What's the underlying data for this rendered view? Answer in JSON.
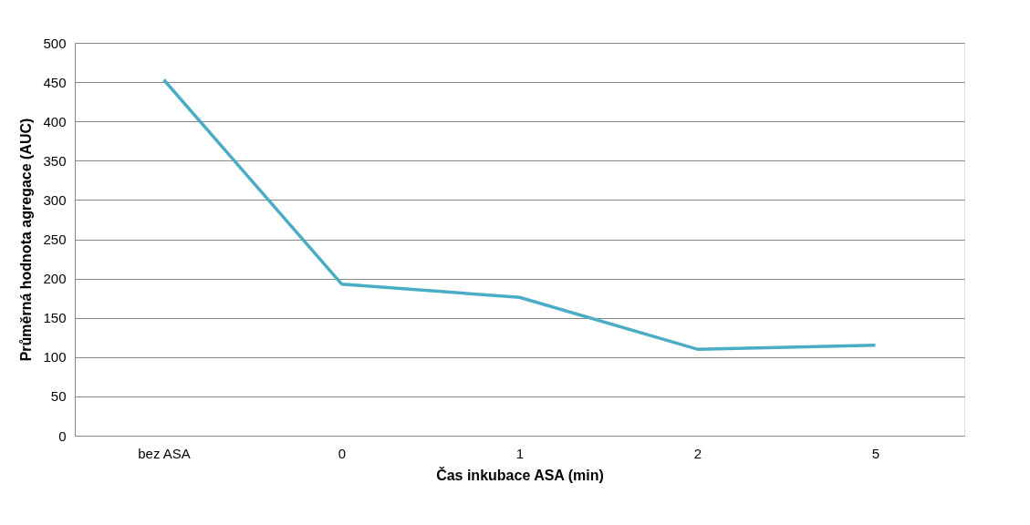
{
  "chart_data": {
    "type": "line",
    "xlabel": "Čas inkubace ASA (min)",
    "ylabel": "Průměrná hodnota agregace (AUC)",
    "categories": [
      "bez ASA",
      "0",
      "1",
      "2",
      "5"
    ],
    "series": [
      {
        "color": "#4bacc6",
        "values": [
          453,
          193,
          176,
          110,
          115
        ]
      }
    ],
    "ylim": [
      0,
      500
    ],
    "yticks": [
      0,
      50,
      100,
      150,
      200,
      250,
      300,
      350,
      400,
      450,
      500
    ],
    "grid": "y",
    "legend": false,
    "marker": "none",
    "line_style": "solid"
  }
}
